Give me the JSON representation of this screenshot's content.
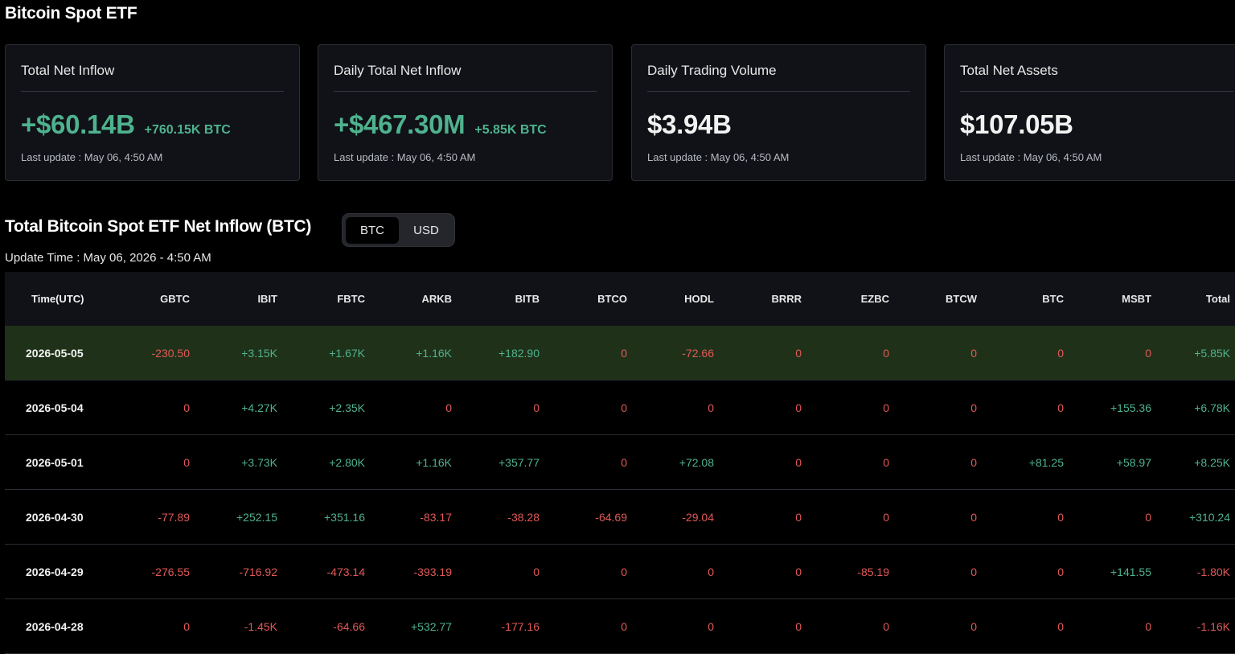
{
  "page_title": "Bitcoin Spot ETF",
  "cards": [
    {
      "title": "Total Net Inflow",
      "value": "+$60.14B",
      "sub": "+760.15K BTC",
      "update": "Last update : May 06, 4:50 AM",
      "tone": "green"
    },
    {
      "title": "Daily Total Net Inflow",
      "value": "+$467.30M",
      "sub": "+5.85K BTC",
      "update": "Last update : May 06, 4:50 AM",
      "tone": "green"
    },
    {
      "title": "Daily Trading Volume",
      "value": "$3.94B",
      "sub": "",
      "update": "Last update : May 06, 4:50 AM",
      "tone": "white"
    },
    {
      "title": "Total Net Assets",
      "value": "$107.05B",
      "sub": "",
      "update": "Last update : May 06, 4:50 AM",
      "tone": "white"
    }
  ],
  "section": {
    "title": "Total Bitcoin Spot ETF Net Inflow (BTC)",
    "toggle": {
      "btc": "BTC",
      "usd": "USD",
      "active": "BTC"
    },
    "update_time": "Update Time : May 06, 2026 - 4:50 AM"
  },
  "table": {
    "headers": [
      "Time(UTC)",
      "GBTC",
      "IBIT",
      "FBTC",
      "ARKB",
      "BITB",
      "BTCO",
      "HODL",
      "BRRR",
      "EZBC",
      "BTCW",
      "BTC",
      "MSBT",
      "Total"
    ],
    "rows": [
      [
        "2026-05-05",
        "-230.50",
        "+3.15K",
        "+1.67K",
        "+1.16K",
        "+182.90",
        "0",
        "-72.66",
        "0",
        "0",
        "0",
        "0",
        "0",
        "+5.85K"
      ],
      [
        "2026-05-04",
        "0",
        "+4.27K",
        "+2.35K",
        "0",
        "0",
        "0",
        "0",
        "0",
        "0",
        "0",
        "0",
        "+155.36",
        "+6.78K"
      ],
      [
        "2026-05-01",
        "0",
        "+3.73K",
        "+2.80K",
        "+1.16K",
        "+357.77",
        "0",
        "+72.08",
        "0",
        "0",
        "0",
        "+81.25",
        "+58.97",
        "+8.25K"
      ],
      [
        "2026-04-30",
        "-77.89",
        "+252.15",
        "+351.16",
        "-83.17",
        "-38.28",
        "-64.69",
        "-29.04",
        "0",
        "0",
        "0",
        "0",
        "0",
        "+310.24"
      ],
      [
        "2026-04-29",
        "-276.55",
        "-716.92",
        "-473.14",
        "-393.19",
        "0",
        "0",
        "0",
        "0",
        "-85.19",
        "0",
        "0",
        "+141.55",
        "-1.80K"
      ],
      [
        "2026-04-28",
        "0",
        "-1.45K",
        "-64.66",
        "+532.77",
        "-177.16",
        "0",
        "0",
        "0",
        "0",
        "0",
        "0",
        "0",
        "-1.16K"
      ]
    ],
    "colors": {
      "positive": "#4fb28e",
      "negative_or_zero": "#e25858",
      "highlight_row_bg": "#1f3219"
    }
  }
}
